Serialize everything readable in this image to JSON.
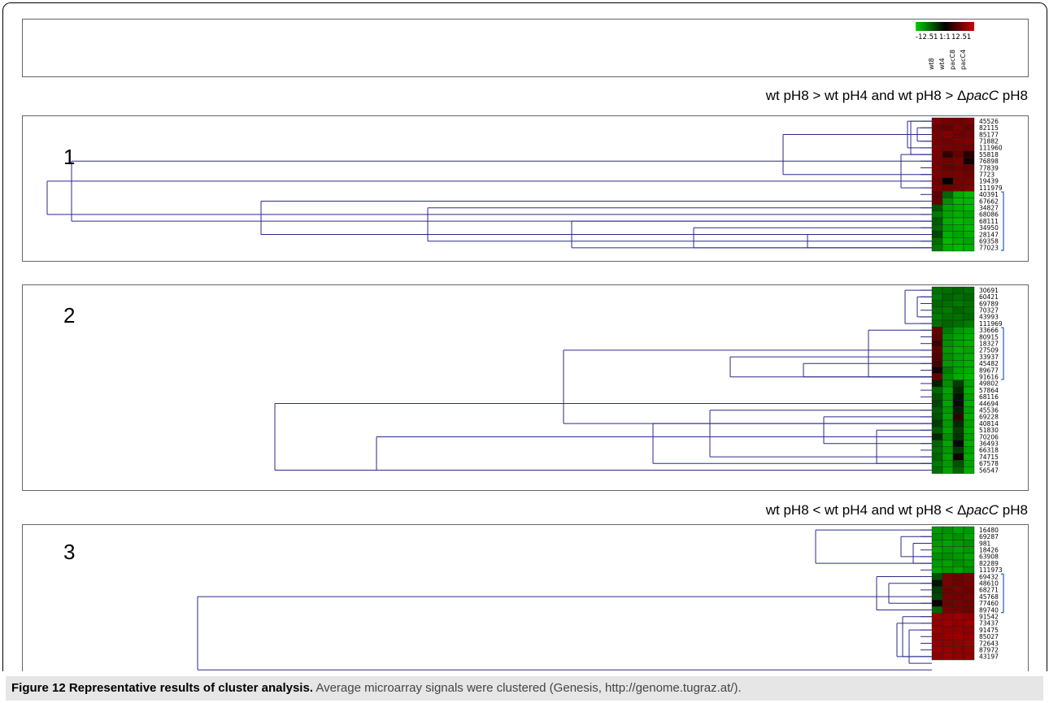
{
  "legend": {
    "colors": {
      "low": "#00cc00",
      "mid": "#000000",
      "high": "#cc0000"
    },
    "min_label": "-12.51",
    "mid_label": "1:1",
    "max_label": "12.51",
    "columns": [
      "wt8",
      "wt4",
      "pacC8",
      "pacC4"
    ]
  },
  "conditions": {
    "c1": {
      "pre": "wt pH8 > wt pH4 and wt pH8 > Δ",
      "gene": "pacC",
      "post": " pH8"
    },
    "c2": {
      "pre": "wt pH8 < wt pH4 and wt pH8 < Δ",
      "gene": "pacC",
      "post": " pH8"
    }
  },
  "panels": [
    {
      "number": "1",
      "labels": [
        "45526",
        "82115",
        "85177",
        "71882",
        "111960",
        "55818",
        "76898",
        "77839",
        "7723",
        "19439",
        "111979",
        "40391",
        "67662",
        "34827",
        "68086",
        "68111",
        "34950",
        "28147",
        "69358",
        "77023"
      ],
      "values": [
        [
          0.62,
          0.58,
          0.55,
          0.6
        ],
        [
          0.55,
          0.5,
          0.6,
          0.52
        ],
        [
          0.6,
          0.62,
          0.55,
          0.58
        ],
        [
          0.58,
          0.55,
          0.6,
          0.62
        ],
        [
          0.62,
          0.6,
          0.58,
          0.55
        ],
        [
          0.6,
          0.25,
          0.5,
          0.2
        ],
        [
          0.58,
          0.55,
          0.6,
          0.1
        ],
        [
          0.6,
          0.52,
          0.55,
          0.5
        ],
        [
          0.62,
          0.58,
          0.6,
          0.55
        ],
        [
          0.55,
          0.0,
          0.58,
          0.6
        ],
        [
          0.6,
          0.55,
          0.58,
          0.62
        ],
        [
          0.45,
          -0.5,
          -0.85,
          -0.9
        ],
        [
          0.5,
          -0.7,
          -0.9,
          -0.9
        ],
        [
          -0.4,
          -0.8,
          -0.85,
          -0.9
        ],
        [
          -0.6,
          -0.8,
          -0.85,
          -0.8
        ],
        [
          -0.45,
          -0.85,
          -0.9,
          -0.85
        ],
        [
          -0.5,
          -0.8,
          -0.85,
          -0.9
        ],
        [
          -0.35,
          -0.85,
          -0.8,
          -0.85
        ],
        [
          -0.55,
          -0.9,
          -0.85,
          -0.8
        ],
        [
          -0.6,
          -0.85,
          -0.9,
          -0.85
        ]
      ]
    },
    {
      "number": "2",
      "labels": [
        "30691",
        "60421",
        "69789",
        "70327",
        "43993",
        "111969",
        "33666",
        "80915",
        "18327",
        "27509",
        "33937",
        "45482",
        "89677",
        "91616",
        "49802",
        "57864",
        "68116",
        "44694",
        "45536",
        "69228",
        "40814",
        "51830",
        "70206",
        "36493",
        "66318",
        "74715",
        "67578",
        "56547"
      ],
      "values": [
        [
          -0.55,
          -0.55,
          -0.5,
          -0.55
        ],
        [
          -0.6,
          -0.5,
          -0.55,
          -0.5
        ],
        [
          -0.5,
          -0.55,
          -0.6,
          -0.55
        ],
        [
          -0.55,
          -0.6,
          -0.5,
          -0.55
        ],
        [
          -0.6,
          -0.55,
          -0.55,
          -0.5
        ],
        [
          -0.55,
          -0.5,
          -0.55,
          -0.6
        ],
        [
          0.5,
          -0.6,
          -0.75,
          -0.8
        ],
        [
          0.45,
          -0.7,
          -0.8,
          -0.85
        ],
        [
          0.3,
          -0.7,
          -0.8,
          -0.85
        ],
        [
          0.45,
          -0.75,
          -0.85,
          -0.8
        ],
        [
          0.4,
          -0.7,
          -0.8,
          -0.85
        ],
        [
          0.35,
          -0.75,
          -0.8,
          -0.85
        ],
        [
          0.1,
          -0.6,
          -0.8,
          -0.85
        ],
        [
          0.5,
          -0.7,
          -0.85,
          -0.9
        ],
        [
          -0.15,
          -0.7,
          -0.3,
          -0.8
        ],
        [
          -0.5,
          -0.8,
          -0.2,
          -0.85
        ],
        [
          -0.4,
          -0.75,
          -0.1,
          -0.8
        ],
        [
          -0.35,
          -0.8,
          -0.05,
          -0.85
        ],
        [
          -0.45,
          -0.75,
          -0.15,
          -0.8
        ],
        [
          -0.4,
          -0.8,
          0.25,
          -0.85
        ],
        [
          -0.3,
          -0.75,
          -0.2,
          -0.8
        ],
        [
          -0.45,
          -0.8,
          -0.3,
          -0.85
        ],
        [
          -0.2,
          -0.7,
          -0.25,
          -0.8
        ],
        [
          -0.5,
          -0.8,
          -0.05,
          -0.85
        ],
        [
          -0.55,
          -0.75,
          -0.3,
          -0.8
        ],
        [
          -0.5,
          -0.8,
          0.1,
          -0.85
        ],
        [
          -0.6,
          -0.75,
          -0.4,
          -0.8
        ],
        [
          -0.55,
          -0.8,
          -0.5,
          -0.85
        ]
      ]
    },
    {
      "number": "3",
      "labels": [
        "16480",
        "69287",
        "981",
        "18426",
        "63908",
        "82289",
        "111973",
        "69432",
        "48610",
        "68271",
        "45768",
        "77460",
        "89740",
        "91542",
        "73437",
        "91475",
        "85027",
        "72643",
        "87972",
        "43197"
      ],
      "values": [
        [
          -0.75,
          -0.7,
          -0.8,
          -0.75
        ],
        [
          -0.7,
          -0.75,
          -0.7,
          -0.8
        ],
        [
          -0.75,
          -0.8,
          -0.75,
          -0.7
        ],
        [
          -0.8,
          -0.75,
          -0.8,
          -0.75
        ],
        [
          -0.7,
          -0.7,
          -0.75,
          -0.8
        ],
        [
          -0.75,
          -0.8,
          -0.7,
          -0.75
        ],
        [
          -0.8,
          -0.75,
          -0.8,
          -0.7
        ],
        [
          -0.4,
          0.6,
          0.55,
          0.6
        ],
        [
          -0.1,
          0.6,
          0.55,
          0.58
        ],
        [
          -0.3,
          0.55,
          0.6,
          0.55
        ],
        [
          -0.35,
          0.58,
          0.55,
          0.6
        ],
        [
          0.05,
          0.55,
          0.6,
          0.55
        ],
        [
          -0.5,
          0.6,
          0.58,
          0.55
        ],
        [
          0.75,
          0.7,
          0.75,
          0.7
        ],
        [
          0.7,
          0.75,
          0.7,
          0.75
        ],
        [
          0.75,
          0.7,
          0.72,
          0.7
        ],
        [
          0.7,
          0.72,
          0.75,
          0.7
        ],
        [
          0.72,
          0.7,
          0.7,
          0.75
        ],
        [
          0.75,
          0.72,
          0.7,
          0.72
        ],
        [
          0.7,
          0.75,
          0.72,
          0.7
        ]
      ]
    }
  ],
  "caption": {
    "bold": "Figure 12 Representative results of cluster analysis.",
    "text": " Average microarray signals were clustered (Genesis, http://genome.tugraz.at/)."
  }
}
